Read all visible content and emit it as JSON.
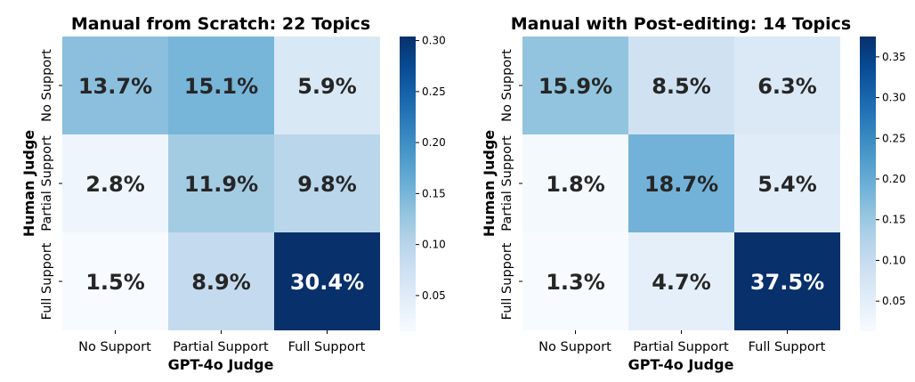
{
  "chart_data": [
    {
      "type": "heatmap",
      "title": "Manual from Scratch: 22 Topics",
      "xlabel": "GPT-4o Judge",
      "ylabel": "Human Judge",
      "x_categories": [
        "No Support",
        "Partial Support",
        "Full Support"
      ],
      "y_categories": [
        "No Support",
        "Partial Support",
        "Full Support"
      ],
      "values": [
        [
          0.137,
          0.151,
          0.059
        ],
        [
          0.028,
          0.119,
          0.098
        ],
        [
          0.015,
          0.089,
          0.304
        ]
      ],
      "cell_labels": [
        [
          "13.7%",
          "15.1%",
          "5.9%"
        ],
        [
          "2.8%",
          "11.9%",
          "9.8%"
        ],
        [
          "1.5%",
          "8.9%",
          "30.4%"
        ]
      ],
      "colormap": "Blues",
      "color_range": [
        0.015,
        0.304
      ],
      "colorbar_ticks": [
        "0.05",
        "0.10",
        "0.15",
        "0.20",
        "0.25",
        "0.30"
      ]
    },
    {
      "type": "heatmap",
      "title": "Manual with Post-editing: 14 Topics",
      "xlabel": "GPT-4o Judge",
      "ylabel": "Human Judge",
      "x_categories": [
        "No Support",
        "Partial Support",
        "Full Support"
      ],
      "y_categories": [
        "No Support",
        "Partial Support",
        "Full Support"
      ],
      "values": [
        [
          0.159,
          0.085,
          0.063
        ],
        [
          0.018,
          0.187,
          0.054
        ],
        [
          0.013,
          0.047,
          0.375
        ]
      ],
      "cell_labels": [
        [
          "15.9%",
          "8.5%",
          "6.3%"
        ],
        [
          "1.8%",
          "18.7%",
          "5.4%"
        ],
        [
          "1.3%",
          "4.7%",
          "37.5%"
        ]
      ],
      "colormap": "Blues",
      "color_range": [
        0.013,
        0.375
      ],
      "colorbar_ticks": [
        "0.05",
        "0.10",
        "0.15",
        "0.20",
        "0.25",
        "0.30",
        "0.35"
      ]
    }
  ]
}
